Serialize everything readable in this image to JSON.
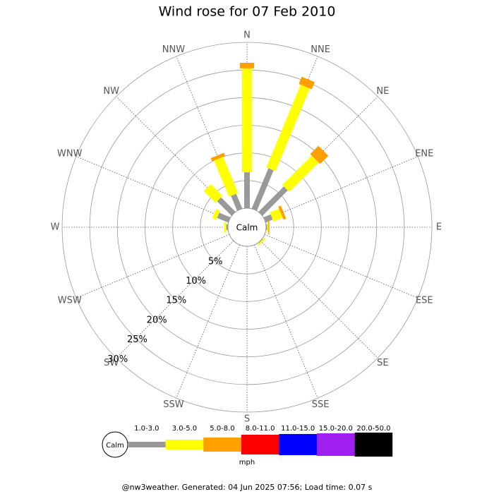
{
  "chart_data": {
    "type": "windrose",
    "title": "Wind rose for 07 Feb 2010",
    "categories": [
      "N",
      "NNE",
      "NE",
      "ENE",
      "E",
      "ESE",
      "SE",
      "SSE",
      "S",
      "SSW",
      "SW",
      "WSW",
      "W",
      "WNW",
      "NW",
      "NNW"
    ],
    "series": [
      {
        "name": "1.0-3.0",
        "color": "#999999",
        "values": [
          6.5,
          7.9,
          6.5,
          1.4,
          0.2,
          0,
          0.1,
          0,
          0,
          0,
          0,
          0,
          0.3,
          2.2,
          3.7,
          2.9
        ]
      },
      {
        "name": "3.0-5.0",
        "color": "#ffff00",
        "values": [
          18.8,
          16.2,
          7.5,
          1.8,
          0.2,
          0,
          0.3,
          0,
          0,
          0,
          0,
          0,
          0.4,
          0.8,
          3.0,
          7.1
        ]
      },
      {
        "name": "5.0-8.0",
        "color": "#ff9f00",
        "values": [
          1.0,
          1.4,
          2.1,
          0.5,
          0.2,
          0,
          0,
          0,
          0,
          0,
          0,
          0,
          0,
          0,
          0,
          0.6
        ]
      },
      {
        "name": "8.0-11.0",
        "color": "#ff0000",
        "values": [
          0,
          0,
          0,
          0,
          0,
          0,
          0,
          0,
          0,
          0,
          0,
          0,
          0,
          0,
          0,
          0
        ]
      },
      {
        "name": "11.0-15.0",
        "color": "#0000ff",
        "values": [
          0,
          0,
          0,
          0,
          0,
          0,
          0,
          0,
          0,
          0,
          0,
          0,
          0,
          0,
          0,
          0
        ]
      },
      {
        "name": "15.0-20.0",
        "color": "#a020f0",
        "values": [
          0,
          0,
          0,
          0,
          0,
          0,
          0,
          0,
          0,
          0,
          0,
          0,
          0,
          0,
          0,
          0
        ]
      },
      {
        "name": "20.0-50.0",
        "color": "#000000",
        "values": [
          0,
          0,
          0,
          0,
          0,
          0,
          0,
          0,
          0,
          0,
          0,
          0,
          0,
          0,
          0,
          0
        ]
      }
    ],
    "rlim": [
      0,
      30
    ],
    "rticks": [
      {
        "value": 5,
        "label": "5%"
      },
      {
        "value": 10,
        "label": "10%"
      },
      {
        "value": 15,
        "label": "15%"
      },
      {
        "value": 20,
        "label": "20%"
      },
      {
        "value": 25,
        "label": "25%"
      },
      {
        "value": 30,
        "label": "30%"
      }
    ],
    "calm_label": "Calm",
    "legend_unit": "mph",
    "footer": "@nw3weather. Generated: 04 Jun 2025 07:56; Load time: 0.07 s"
  }
}
